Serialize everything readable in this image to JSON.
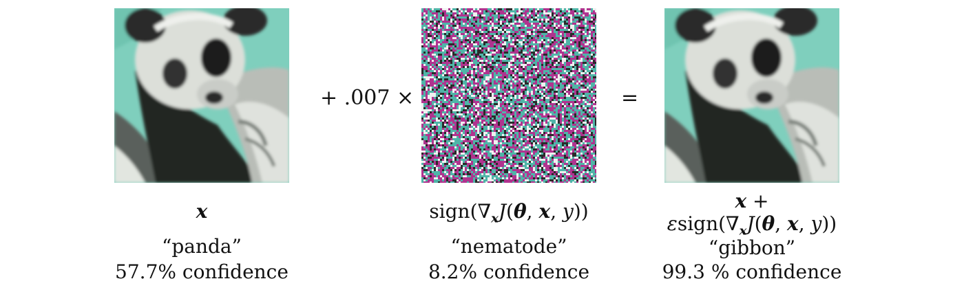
{
  "figure": {
    "operator_plus": "+ .007 ×",
    "operator_equals": "=",
    "left": {
      "expr": "x",
      "label": "“panda”",
      "confidence": "57.7% confidence"
    },
    "middle": {
      "expr_sign": "sign(∇",
      "expr_sub": "x",
      "expr_J": "J",
      "expr_open": "(",
      "expr_theta": "θ",
      "expr_comma1": ", ",
      "expr_x": "x",
      "expr_comma2": ", ",
      "expr_y": "y",
      "expr_close": "))",
      "label": "“nematode”",
      "confidence": "8.2% confidence"
    },
    "right": {
      "expr_line1_x": "x",
      "expr_line1_plus": " +",
      "expr_eps": "ε",
      "expr_sign": "sign(∇",
      "expr_sub": "x",
      "expr_J": "J",
      "expr_open": "(",
      "expr_theta": "θ",
      "expr_comma1": ", ",
      "expr_x": "x",
      "expr_comma2": ", ",
      "expr_y": "y",
      "expr_close": "))",
      "label": "“gibbon”",
      "confidence": "99.3 % confidence"
    },
    "colors": {
      "teal_background": "#7fcfbd",
      "panda_white": "#d9dcd6",
      "panda_black": "#1e1f1e",
      "panda_grey": "#8c918c",
      "noise_magenta": "#b0338f",
      "noise_teal": "#4fb5a8",
      "noise_white": "#f0f0f0",
      "noise_dark": "#2a2a2a"
    },
    "icons": [
      "panda-image",
      "noise-image",
      "panda-adversarial-image"
    ]
  }
}
